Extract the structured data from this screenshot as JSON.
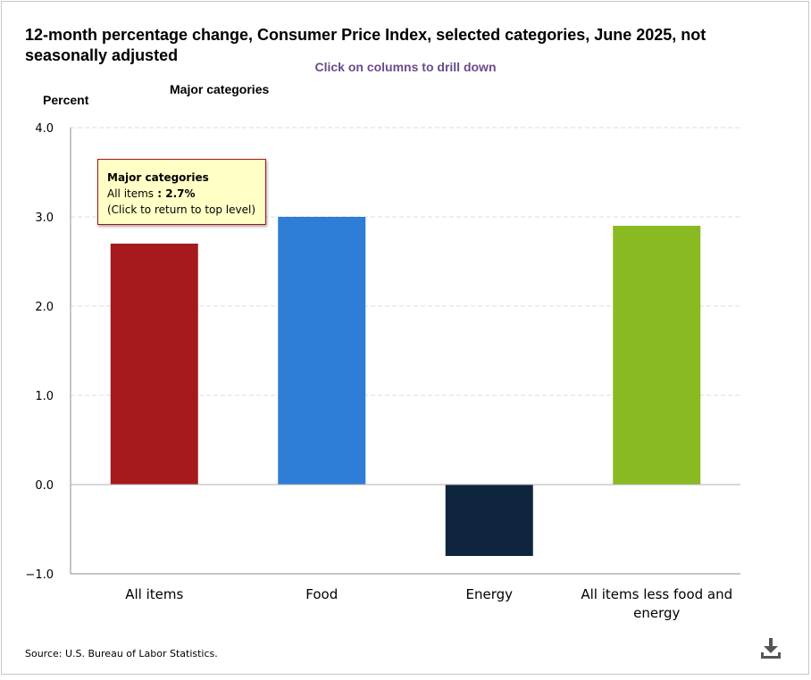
{
  "title": "12-month percentage change, Consumer Price Index, selected categories, June 2025, not seasonally adjusted",
  "drilldown_hint": "Click on columns to drill down",
  "y_axis_label": "Percent",
  "subtitle": "Major categories",
  "tooltip": {
    "header": "Major categories",
    "item_label": "All items",
    "separator": " : ",
    "item_value": "2.7%",
    "note": "(Click to return to top level)"
  },
  "source": "Source: U.S. Bureau of Labor Statistics.",
  "download_icon": "download-icon",
  "chart_data": {
    "type": "bar",
    "title": "12-month percentage change, Consumer Price Index, selected categories, June 2025, not seasonally adjusted",
    "subtitle": "Major categories",
    "ylabel": "Percent",
    "xlabel": "",
    "categories": [
      "All items",
      "Food",
      "Energy",
      "All items less food and energy"
    ],
    "category_lines": [
      [
        "All items"
      ],
      [
        "Food"
      ],
      [
        "Energy"
      ],
      [
        "All items less food and energy"
      ]
    ],
    "values": [
      2.7,
      3.0,
      -0.8,
      2.9
    ],
    "colors": [
      "#a6191c",
      "#2e7dd7",
      "#0f253d",
      "#8aba22"
    ],
    "ylim": [
      -1.0,
      4.0
    ],
    "yticks": [
      -1.0,
      0.0,
      1.0,
      2.0,
      3.0,
      4.0
    ],
    "ytick_labels": [
      "−1.0",
      "0.0",
      "1.0",
      "2.0",
      "3.0",
      "4.0"
    ],
    "grid": true,
    "legend": "none"
  }
}
